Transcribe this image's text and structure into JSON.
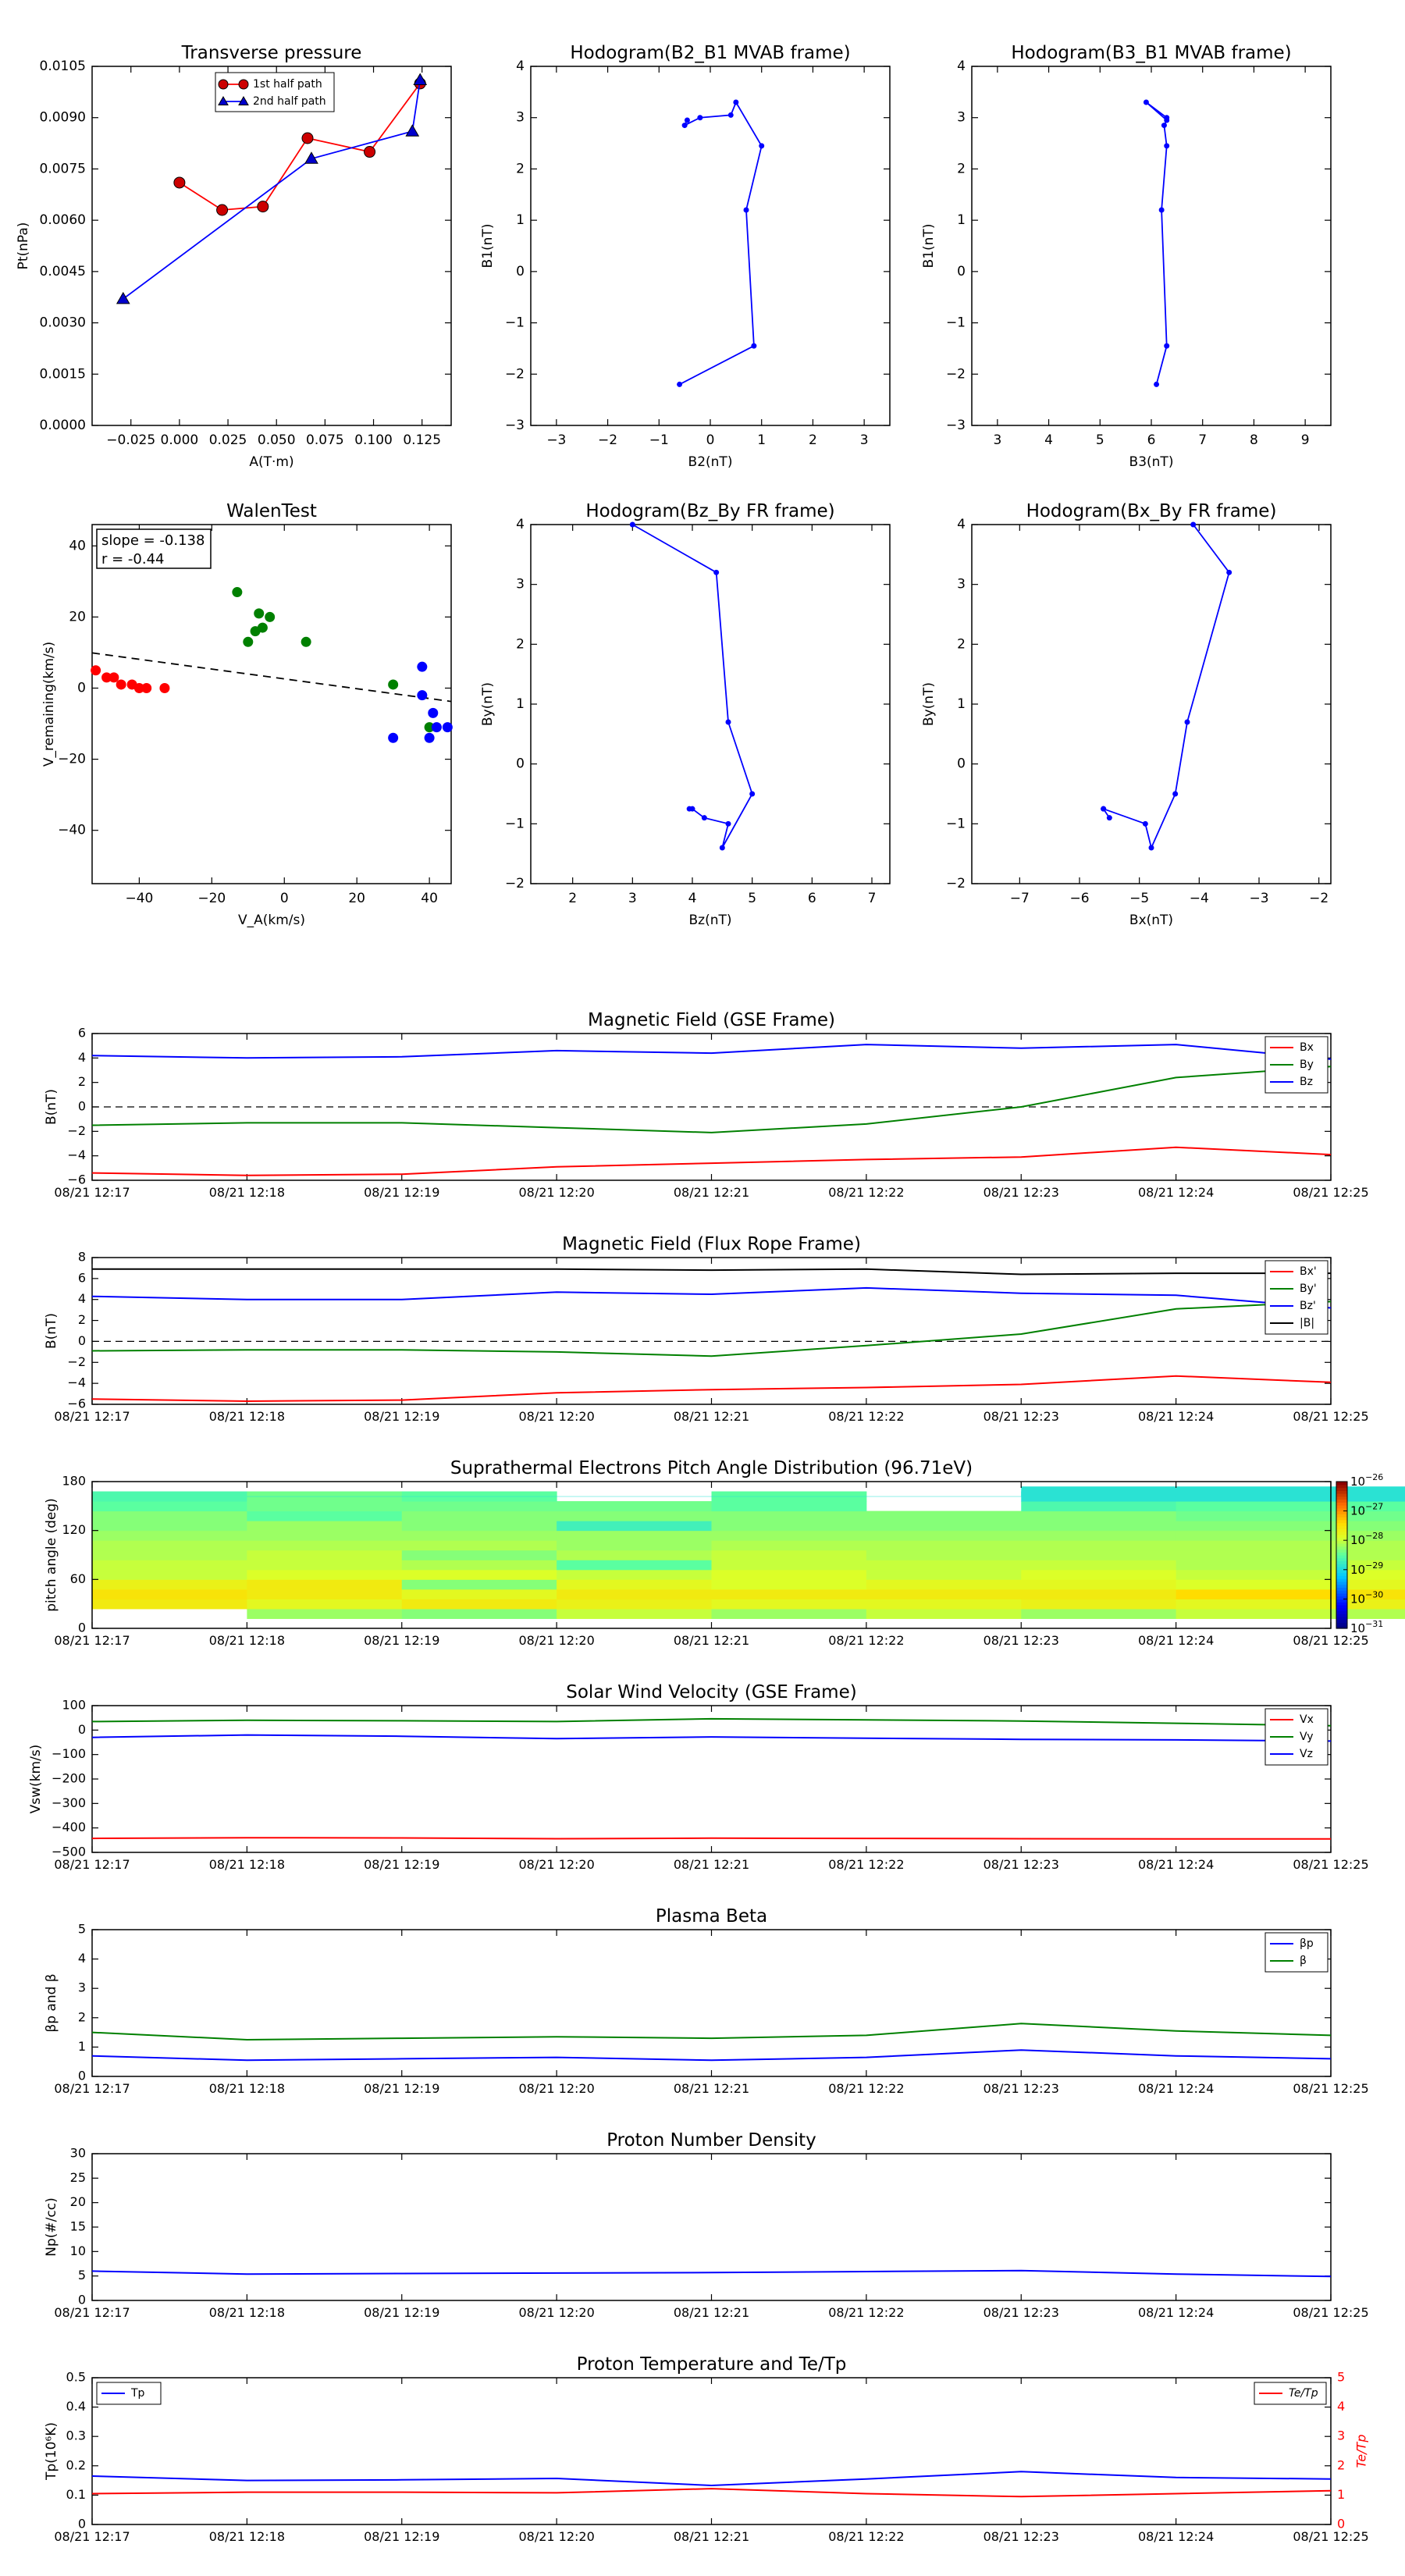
{
  "chart_data": [
    {
      "id": "pt",
      "type": "line",
      "title": "Transverse pressure",
      "xlabel": "A(T·m)",
      "ylabel": "Pt(nPa)",
      "xlim": [
        -0.045,
        0.14
      ],
      "ylim": [
        0,
        0.0105
      ],
      "xticks": [
        -0.025,
        0.0,
        0.025,
        0.05,
        0.075,
        0.1,
        0.125
      ],
      "xtick_labels": [
        "−0.025",
        "0.000",
        "0.025",
        "0.050",
        "0.075",
        "0.100",
        "0.125"
      ],
      "yticks": [
        0,
        0.0015,
        0.003,
        0.0045,
        0.006,
        0.0075,
        0.009,
        0.0105
      ],
      "ytick_labels": [
        "0.0000",
        "0.0015",
        "0.0030",
        "0.0045",
        "0.0060",
        "0.0075",
        "0.0090",
        "0.0105"
      ],
      "legend": {
        "position": "top-center",
        "entries": [
          "1st half path",
          "2nd half path"
        ]
      },
      "series": [
        {
          "name": "1st half path",
          "color": "#ff0000",
          "marker": "circle",
          "marker_color": "#cc0000",
          "x": [
            0.0,
            0.022,
            0.043,
            0.066,
            0.098,
            0.124
          ],
          "y": [
            0.0071,
            0.0063,
            0.0064,
            0.0084,
            0.008,
            0.01
          ]
        },
        {
          "name": "2nd half path",
          "color": "#0000ff",
          "marker": "triangle",
          "marker_color": "#0000cc",
          "x": [
            -0.029,
            0.068,
            0.12,
            0.124
          ],
          "y": [
            0.0037,
            0.0078,
            0.0086,
            0.0101
          ]
        }
      ]
    },
    {
      "id": "h21",
      "type": "line",
      "title": "Hodogram(B2_B1 MVAB frame)",
      "xlabel": "B2(nT)",
      "ylabel": "B1(nT)",
      "xlim": [
        -3.5,
        3.5
      ],
      "ylim": [
        -3,
        4
      ],
      "xticks": [
        -3,
        -2,
        -1,
        0,
        1,
        2,
        3
      ],
      "yticks": [
        -3,
        -2,
        -1,
        0,
        1,
        2,
        3,
        4
      ],
      "series": [
        {
          "color": "#0000ff",
          "marker": "dot",
          "x": [
            -0.6,
            0.85,
            0.7,
            1.0,
            0.5,
            0.4,
            -0.2,
            -0.5,
            -0.45
          ],
          "y": [
            -2.2,
            -1.45,
            1.2,
            2.45,
            3.3,
            3.05,
            3.0,
            2.85,
            2.95
          ]
        }
      ]
    },
    {
      "id": "h31",
      "type": "line",
      "title": "Hodogram(B3_B1 MVAB frame)",
      "xlabel": "B3(nT)",
      "ylabel": "B1(nT)",
      "xlim": [
        2.5,
        9.5
      ],
      "ylim": [
        -3,
        4
      ],
      "xticks": [
        3,
        4,
        5,
        6,
        7,
        8,
        9
      ],
      "yticks": [
        -3,
        -2,
        -1,
        0,
        1,
        2,
        3,
        4
      ],
      "series": [
        {
          "color": "#0000ff",
          "marker": "dot",
          "x": [
            6.1,
            6.3,
            6.2,
            6.3,
            6.25,
            6.3,
            5.9,
            6.3
          ],
          "y": [
            -2.2,
            -1.45,
            1.2,
            2.45,
            2.85,
            2.95,
            3.3,
            3.0
          ]
        }
      ]
    },
    {
      "id": "walen",
      "type": "scatter",
      "title": "WalenTest",
      "xlabel": "V_A(km/s)",
      "ylabel": "V_remaining(km/s)",
      "xlim": [
        -53,
        46
      ],
      "ylim": [
        -55,
        46
      ],
      "xticks": [
        -40,
        -20,
        0,
        20,
        40
      ],
      "yticks": [
        -40,
        -20,
        0,
        20,
        40
      ],
      "annotation": [
        "slope = -0.138",
        "r = -0.44"
      ],
      "fit": {
        "slope": -0.138,
        "intercept": 2.6,
        "style": "dashed"
      },
      "series": [
        {
          "color": "#ff0000",
          "x": [
            -52,
            -49,
            -47,
            -45,
            -42,
            -40,
            -38,
            -33
          ],
          "y": [
            5,
            3,
            3,
            1,
            1,
            0,
            0,
            0
          ]
        },
        {
          "color": "#008000",
          "x": [
            -13,
            -10,
            -8,
            -7,
            -6,
            -4,
            6,
            30,
            40
          ],
          "y": [
            27,
            13,
            16,
            21,
            17,
            20,
            13,
            1,
            -11
          ]
        },
        {
          "color": "#0000ff",
          "x": [
            30,
            38,
            38,
            40,
            41,
            42,
            45
          ],
          "y": [
            -14,
            6,
            -2,
            -14,
            -7,
            -11,
            -11
          ]
        }
      ]
    },
    {
      "id": "fr1",
      "type": "line",
      "title": "Hodogram(Bz_By FR frame)",
      "xlabel": "Bz(nT)",
      "ylabel": "By(nT)",
      "xlim": [
        1.3,
        7.3
      ],
      "ylim": [
        -2,
        4
      ],
      "xticks": [
        2,
        3,
        4,
        5,
        6,
        7
      ],
      "yticks": [
        -2,
        -1,
        0,
        1,
        2,
        3,
        4
      ],
      "series": [
        {
          "color": "#0000ff",
          "marker": "dot",
          "x": [
            3.0,
            4.4,
            4.6,
            5.0,
            4.5,
            4.6,
            4.2,
            4.0,
            3.95
          ],
          "y": [
            4.0,
            3.2,
            0.7,
            -0.5,
            -1.4,
            -1.0,
            -0.9,
            -0.75,
            -0.75
          ]
        }
      ]
    },
    {
      "id": "fr2",
      "type": "line",
      "title": "Hodogram(Bx_By FR frame)",
      "xlabel": "Bx(nT)",
      "ylabel": "By(nT)",
      "xlim": [
        -7.8,
        -1.8
      ],
      "ylim": [
        -2,
        4
      ],
      "xticks": [
        -7,
        -6,
        -5,
        -4,
        -3,
        -2
      ],
      "yticks": [
        -2,
        -1,
        0,
        1,
        2,
        3,
        4
      ],
      "series": [
        {
          "color": "#0000ff",
          "marker": "dot",
          "x": [
            -4.1,
            -3.5,
            -4.2,
            -4.4,
            -4.8,
            -4.9,
            -5.6,
            -5.5,
            -5.6
          ],
          "y": [
            4.0,
            3.2,
            0.7,
            -0.5,
            -1.4,
            -1.0,
            -0.75,
            -0.9,
            -0.75
          ]
        }
      ]
    },
    {
      "id": "bgse",
      "type": "line",
      "title": "Magnetic Field (GSE Frame)",
      "ylabel": "B(nT)",
      "xlim": [
        0,
        8
      ],
      "ylim": [
        -6,
        6
      ],
      "yticks": [
        -6,
        -4,
        -2,
        0,
        2,
        4,
        6
      ],
      "zero_line": true,
      "legend": {
        "position": "top-right",
        "entries": [
          "Bx",
          "By",
          "Bz"
        ]
      },
      "series": [
        {
          "name": "Bx",
          "color": "#ff0000",
          "values": [
            -5.4,
            -5.6,
            -5.5,
            -4.9,
            -4.6,
            -4.3,
            -4.1,
            -3.3,
            -3.9
          ]
        },
        {
          "name": "By",
          "color": "#008000",
          "values": [
            -1.5,
            -1.3,
            -1.3,
            -1.7,
            -2.1,
            -1.4,
            0.0,
            2.4,
            3.3
          ]
        },
        {
          "name": "Bz",
          "color": "#0000ff",
          "values": [
            4.2,
            4.0,
            4.1,
            4.6,
            4.4,
            5.1,
            4.8,
            5.1,
            3.9
          ]
        }
      ]
    },
    {
      "id": "bfr",
      "type": "line",
      "title": "Magnetic Field (Flux Rope Frame)",
      "ylabel": "B(nT)",
      "xlim": [
        0,
        8
      ],
      "ylim": [
        -6,
        8
      ],
      "yticks": [
        -6,
        -4,
        -2,
        0,
        2,
        4,
        6,
        8
      ],
      "zero_line": true,
      "legend": {
        "position": "top-right",
        "entries": [
          "Bx'",
          "By'",
          "Bz'",
          "|B|"
        ]
      },
      "series": [
        {
          "name": "Bx'",
          "color": "#ff0000",
          "values": [
            -5.5,
            -5.7,
            -5.6,
            -4.9,
            -4.6,
            -4.4,
            -4.1,
            -3.3,
            -3.9
          ]
        },
        {
          "name": "By'",
          "color": "#008000",
          "values": [
            -0.9,
            -0.8,
            -0.8,
            -1.0,
            -1.4,
            -0.4,
            0.7,
            3.1,
            3.8
          ]
        },
        {
          "name": "Bz'",
          "color": "#0000ff",
          "values": [
            4.3,
            4.0,
            4.0,
            4.7,
            4.5,
            5.1,
            4.6,
            4.4,
            3.2
          ]
        },
        {
          "name": "|B|",
          "color": "#000000",
          "values": [
            6.9,
            6.9,
            6.9,
            6.9,
            6.8,
            6.9,
            6.4,
            6.5,
            6.5
          ]
        }
      ]
    },
    {
      "id": "pad",
      "type": "heatmap",
      "title": "Suprathermal Electrons Pitch Angle Distribution (96.71eV)",
      "ylabel": "pitch angle (deg)",
      "xlim": [
        0,
        8
      ],
      "ylim": [
        0,
        180
      ],
      "yticks": [
        0,
        60,
        120,
        180
      ],
      "colorbar": {
        "scale": "log",
        "range_exp": [
          -31,
          -26
        ],
        "tick_exps": [
          -31,
          -30,
          -29,
          -28,
          -27,
          -26
        ]
      },
      "bins_y": [
        18,
        30,
        42,
        54,
        66,
        78,
        90,
        102,
        114,
        126,
        138,
        150,
        162
      ],
      "grid": [
        [
          null,
          -28.2,
          -28.3,
          -28.0,
          -28.2,
          -28.0,
          -28.2,
          -28.0,
          -28.1
        ],
        [
          -27.6,
          -27.8,
          -27.6,
          -27.7,
          -27.8,
          -27.8,
          -27.7,
          -27.8,
          -27.7
        ],
        [
          -27.5,
          -27.6,
          -27.8,
          -27.6,
          -27.6,
          -27.6,
          -27.6,
          -27.4,
          -27.5
        ],
        [
          -27.7,
          -27.6,
          -28.3,
          -27.8,
          -27.9,
          -27.8,
          -27.8,
          -27.9,
          -27.8
        ],
        [
          -28.0,
          -27.9,
          -27.9,
          -28.0,
          -27.9,
          -28.0,
          -27.9,
          -28.0,
          -27.9
        ],
        [
          -28.0,
          -28.0,
          -28.1,
          -28.5,
          -28.0,
          -28.0,
          -28.0,
          -28.1,
          -28.0
        ],
        [
          -28.1,
          -28.0,
          -28.3,
          -28.1,
          -28.0,
          -28.1,
          -28.1,
          -28.1,
          -28.1
        ],
        [
          -28.1,
          -28.1,
          -28.1,
          -28.2,
          -28.1,
          -28.1,
          -28.1,
          -28.1,
          -28.1
        ],
        [
          -28.2,
          -28.2,
          -28.2,
          -28.2,
          -28.2,
          -28.2,
          -28.2,
          -28.2,
          -28.2
        ],
        [
          -28.3,
          -28.2,
          -28.3,
          -28.7,
          -28.3,
          -28.3,
          -28.3,
          -28.3,
          -28.3
        ],
        [
          -28.3,
          -28.5,
          -28.3,
          -28.3,
          -28.3,
          -28.3,
          -28.3,
          -28.4,
          -28.4
        ],
        [
          -28.5,
          -28.4,
          -28.4,
          -28.4,
          -28.5,
          null,
          -28.6,
          -28.5,
          -28.5
        ],
        [
          -28.6,
          -28.4,
          -28.5,
          null,
          -28.5,
          null,
          -28.9,
          -28.9,
          -28.9
        ]
      ],
      "cell_ymax": [
        null,
        162,
        162,
        162,
        162,
        162,
        174,
        174,
        174
      ]
    },
    {
      "id": "vsw",
      "type": "line",
      "title": "Solar Wind Velocity (GSE Frame)",
      "ylabel": "Vsw(km/s)",
      "xlim": [
        0,
        8
      ],
      "ylim": [
        -500,
        100
      ],
      "yticks": [
        -500,
        -400,
        -300,
        -200,
        -100,
        0,
        100
      ],
      "ytick_labels": [
        "−500",
        "−400",
        "−300",
        "−200",
        "−100",
        "0",
        "100"
      ],
      "legend": {
        "position": "top-right",
        "entries": [
          "Vx",
          "Vy",
          "Vz"
        ]
      },
      "series": [
        {
          "name": "Vx",
          "color": "#ff0000",
          "values": [
            -443,
            -440,
            -441,
            -444,
            -442,
            -443,
            -444,
            -445,
            -445
          ]
        },
        {
          "name": "Vy",
          "color": "#008000",
          "values": [
            35,
            40,
            38,
            35,
            46,
            42,
            37,
            28,
            18
          ]
        },
        {
          "name": "Vz",
          "color": "#0000ff",
          "values": [
            -30,
            -20,
            -25,
            -35,
            -28,
            -33,
            -38,
            -40,
            -45
          ]
        }
      ]
    },
    {
      "id": "beta",
      "type": "line",
      "title": "Plasma Beta",
      "ylabel": "βp and β",
      "xlim": [
        0,
        8
      ],
      "ylim": [
        0,
        5
      ],
      "yticks": [
        0,
        1,
        2,
        3,
        4,
        5
      ],
      "legend": {
        "position": "top-right",
        "entries": [
          "βp",
          "β"
        ]
      },
      "series": [
        {
          "name": "βp",
          "color": "#0000ff",
          "values": [
            0.7,
            0.55,
            0.6,
            0.65,
            0.55,
            0.65,
            0.9,
            0.7,
            0.6
          ]
        },
        {
          "name": "β",
          "color": "#008000",
          "values": [
            1.5,
            1.25,
            1.3,
            1.35,
            1.3,
            1.4,
            1.8,
            1.55,
            1.4
          ]
        }
      ]
    },
    {
      "id": "np",
      "type": "line",
      "title": "Proton Number Density",
      "ylabel": "Np(#/cc)",
      "xlim": [
        0,
        8
      ],
      "ylim": [
        0,
        30
      ],
      "yticks": [
        0,
        5,
        10,
        15,
        20,
        25,
        30
      ],
      "series": [
        {
          "color": "#0000ff",
          "values": [
            6.0,
            5.4,
            5.5,
            5.6,
            5.7,
            5.9,
            6.1,
            5.4,
            4.9
          ]
        }
      ]
    },
    {
      "id": "tp",
      "type": "line",
      "title": "Proton Temperature and Te/Tp",
      "ylabel": "Tp(10⁶K)",
      "ylabel2": "Te/Tp",
      "xlim": [
        0,
        8
      ],
      "ylim": [
        0,
        0.5
      ],
      "ylim2": [
        0,
        5
      ],
      "yticks": [
        0,
        0.1,
        0.2,
        0.3,
        0.4,
        0.5
      ],
      "yticks2": [
        0,
        1,
        2,
        3,
        4,
        5
      ],
      "legend": {
        "left": "Tp",
        "right": "Te/Tp"
      },
      "series": [
        {
          "name": "Tp",
          "color": "#0000ff",
          "axis": "left",
          "values": [
            0.165,
            0.15,
            0.152,
            0.157,
            0.133,
            0.155,
            0.18,
            0.16,
            0.155
          ]
        },
        {
          "name": "Te/Tp",
          "color": "#ff0000",
          "axis": "right",
          "values": [
            1.05,
            1.1,
            1.1,
            1.08,
            1.22,
            1.05,
            0.95,
            1.05,
            1.15
          ]
        }
      ]
    }
  ],
  "time_axis_labels": [
    "08/21 12:17",
    "08/21 12:18",
    "08/21 12:19",
    "08/21 12:20",
    "08/21 12:21",
    "08/21 12:22",
    "08/21 12:23",
    "08/21 12:24",
    "08/21 12:25"
  ]
}
